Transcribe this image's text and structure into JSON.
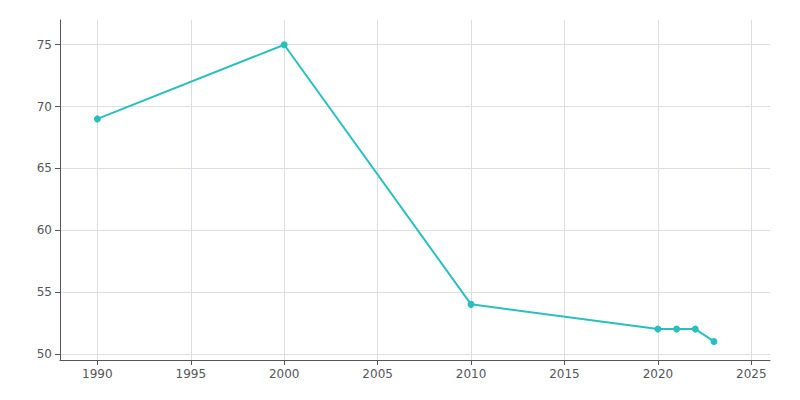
{
  "chart_data": {
    "type": "line",
    "x": [
      1990,
      2000,
      2010,
      2020,
      2021,
      2022,
      2023
    ],
    "values": [
      69,
      75,
      54,
      52,
      52,
      52,
      51
    ],
    "color": "#2abfbf",
    "marker": "circle",
    "xlim": [
      1988,
      2026
    ],
    "ylim": [
      49.5,
      77
    ],
    "xticks": [
      1990,
      1995,
      2000,
      2005,
      2010,
      2015,
      2020,
      2025
    ],
    "yticks": [
      50,
      55,
      60,
      65,
      70,
      75
    ],
    "grid": true
  }
}
